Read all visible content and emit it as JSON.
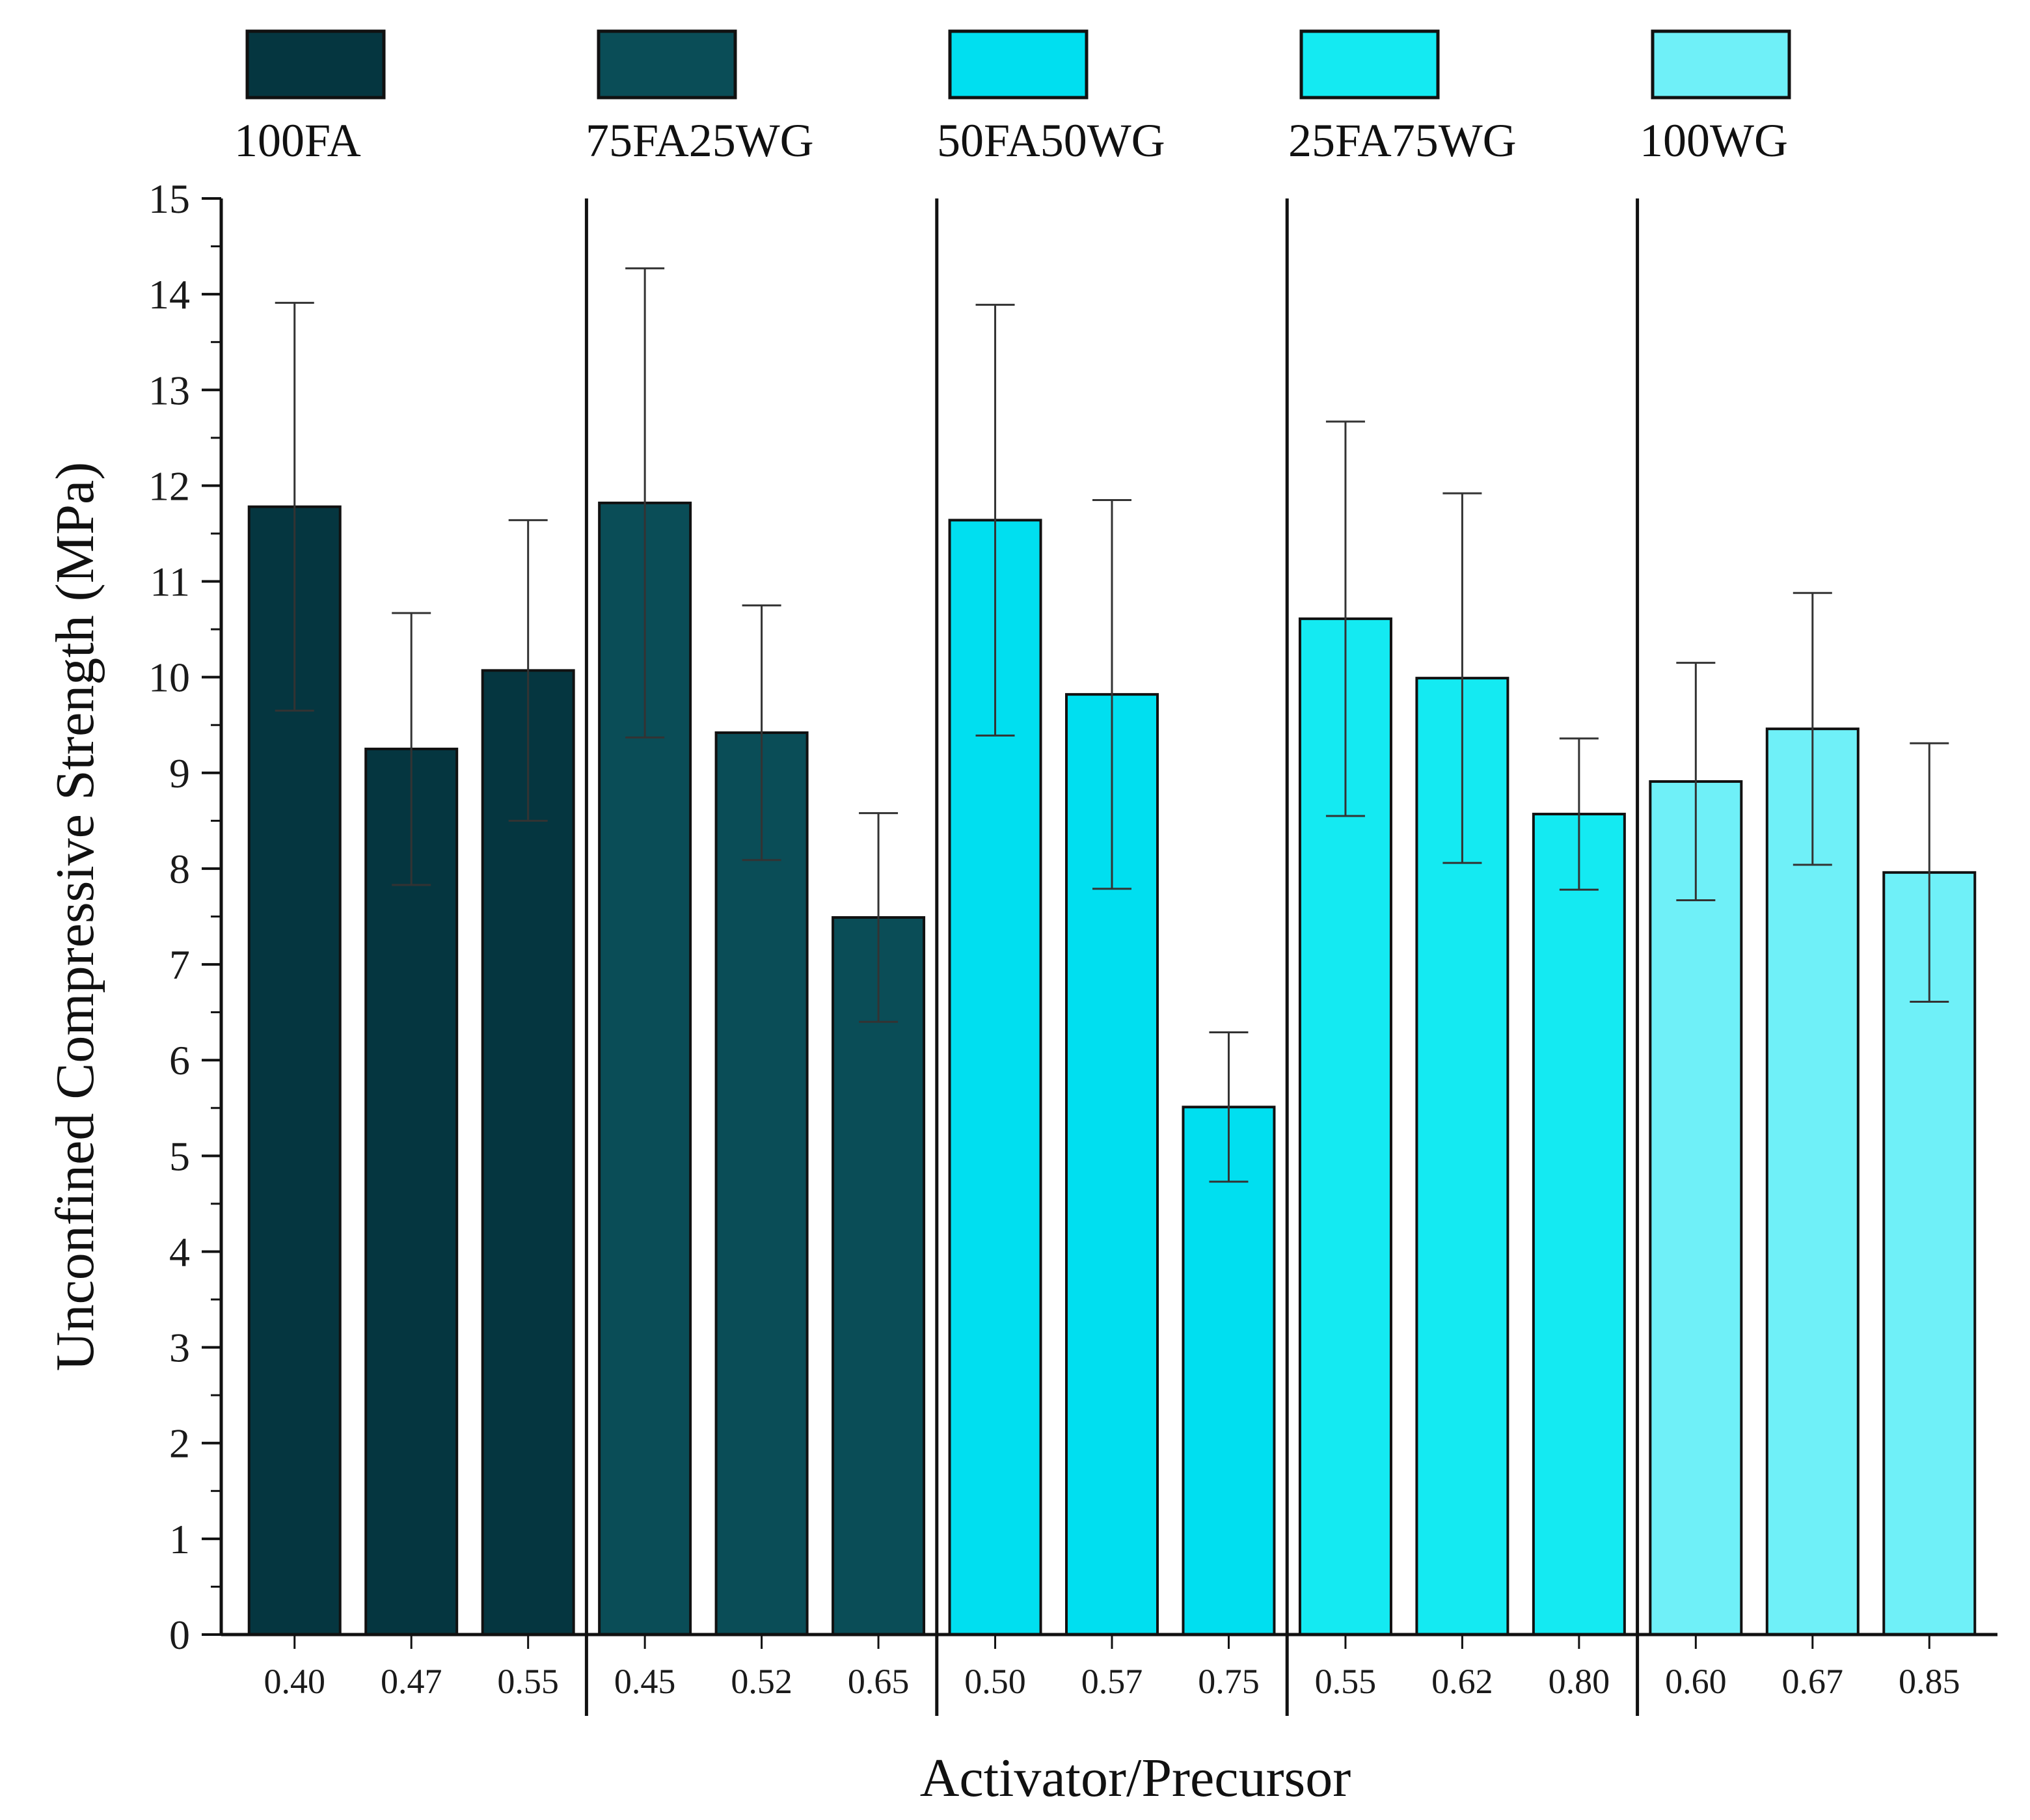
{
  "chart_data": {
    "type": "bar",
    "xlabel": "Activator/Precursor",
    "ylabel": "Unconfined Compressive Strength (MPa)",
    "ylim": [
      0,
      15
    ],
    "yticks": [
      0,
      1,
      2,
      3,
      4,
      5,
      6,
      7,
      8,
      9,
      10,
      11,
      12,
      13,
      14,
      15
    ],
    "grid": false,
    "legend_position": "top",
    "groups": [
      {
        "name": "100FA",
        "color": "#053640",
        "categories": [
          "0.40",
          "0.47",
          "0.55"
        ],
        "values": [
          11.78,
          9.25,
          10.07
        ],
        "error": [
          2.13,
          1.42,
          1.57
        ]
      },
      {
        "name": "75FA25WG",
        "color": "#0a4d57",
        "categories": [
          "0.45",
          "0.52",
          "0.65"
        ],
        "values": [
          11.82,
          9.42,
          7.49
        ],
        "error": [
          2.45,
          1.33,
          1.09
        ]
      },
      {
        "name": "50FA50WG",
        "color": "#00dff0",
        "categories": [
          "0.50",
          "0.57",
          "0.75"
        ],
        "values": [
          11.64,
          9.82,
          5.51
        ],
        "error": [
          2.25,
          2.03,
          0.78
        ]
      },
      {
        "name": "25FA75WG",
        "color": "#14eaf2",
        "categories": [
          "0.55",
          "0.62",
          "0.80"
        ],
        "values": [
          10.61,
          9.99,
          8.57
        ],
        "error": [
          2.06,
          1.93,
          0.79
        ]
      },
      {
        "name": "100WG",
        "color": "#6ff0f8",
        "categories": [
          "0.60",
          "0.67",
          "0.85"
        ],
        "values": [
          8.91,
          9.46,
          7.96
        ],
        "error": [
          1.24,
          1.42,
          1.35
        ]
      }
    ]
  }
}
